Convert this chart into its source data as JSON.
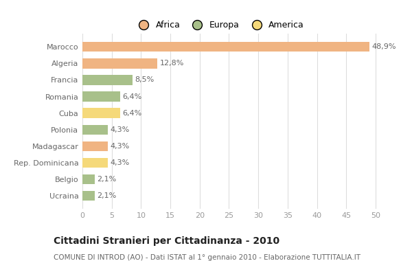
{
  "categories": [
    "Marocco",
    "Algeria",
    "Francia",
    "Romania",
    "Cuba",
    "Polonia",
    "Madagascar",
    "Rep. Dominicana",
    "Belgio",
    "Ucraina"
  ],
  "values": [
    48.9,
    12.8,
    8.5,
    6.4,
    6.4,
    4.3,
    4.3,
    4.3,
    2.1,
    2.1
  ],
  "labels": [
    "48,9%",
    "12,8%",
    "8,5%",
    "6,4%",
    "6,4%",
    "4,3%",
    "4,3%",
    "4,3%",
    "2,1%",
    "2,1%"
  ],
  "colors": [
    "#F0B482",
    "#F0B482",
    "#A8C08A",
    "#A8C08A",
    "#F5D97A",
    "#A8C08A",
    "#F0B482",
    "#F5D97A",
    "#A8C08A",
    "#A8C08A"
  ],
  "legend": [
    {
      "label": "Africa",
      "color": "#F0B482"
    },
    {
      "label": "Europa",
      "color": "#A8C08A"
    },
    {
      "label": "America",
      "color": "#F5D97A"
    }
  ],
  "title": "Cittadini Stranieri per Cittadinanza - 2010",
  "subtitle": "COMUNE DI INTROD (AO) - Dati ISTAT al 1° gennaio 2010 - Elaborazione TUTTITALIA.IT",
  "xlim": [
    0,
    52
  ],
  "xticks": [
    0,
    5,
    10,
    15,
    20,
    25,
    30,
    35,
    40,
    45,
    50
  ],
  "bg_color": "#FFFFFF",
  "grid_color": "#DDDDDD",
  "bar_height": 0.6,
  "label_fontsize": 8,
  "title_fontsize": 10,
  "subtitle_fontsize": 7.5,
  "tick_fontsize": 8,
  "category_fontsize": 8,
  "legend_fontsize": 9
}
